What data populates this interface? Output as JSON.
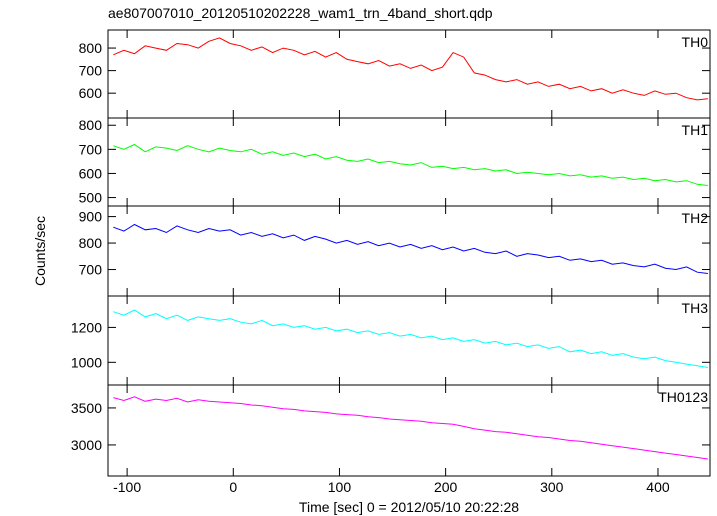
{
  "chart_data": [
    {
      "type": "line",
      "title": "ae807007010_20120510202228_wam1_trn_4band_short.qdp",
      "label": "TH0",
      "color": "#ff0000",
      "xlim": [
        -118,
        449
      ],
      "xticks": [
        -100,
        0,
        100,
        200,
        300,
        400
      ],
      "ylim": [
        490,
        880
      ],
      "yticks": [
        600,
        700,
        800
      ],
      "x": [
        -113,
        -103,
        -93,
        -83,
        -73,
        -63,
        -53,
        -43,
        -33,
        -23,
        -13,
        -3,
        7,
        17,
        27,
        37,
        47,
        57,
        67,
        77,
        87,
        97,
        107,
        117,
        127,
        137,
        147,
        157,
        167,
        177,
        187,
        197,
        207,
        217,
        227,
        237,
        247,
        257,
        267,
        277,
        287,
        297,
        307,
        317,
        327,
        337,
        347,
        357,
        367,
        377,
        387,
        397,
        407,
        417,
        427,
        437,
        447
      ],
      "values": [
        770,
        790,
        775,
        810,
        800,
        790,
        820,
        815,
        800,
        830,
        845,
        820,
        810,
        790,
        805,
        780,
        800,
        790,
        770,
        785,
        760,
        780,
        750,
        740,
        730,
        745,
        720,
        730,
        710,
        725,
        700,
        715,
        780,
        760,
        690,
        680,
        660,
        650,
        660,
        640,
        650,
        630,
        640,
        620,
        630,
        610,
        620,
        600,
        615,
        600,
        590,
        610,
        595,
        600,
        580,
        570,
        575
      ]
    },
    {
      "type": "line",
      "label": "TH1",
      "color": "#00ff00",
      "xlim": [
        -118,
        449
      ],
      "xticks": [
        -100,
        0,
        100,
        200,
        300,
        400
      ],
      "ylim": [
        465,
        830
      ],
      "yticks": [
        500,
        600,
        700,
        800
      ],
      "x": [
        -113,
        -103,
        -93,
        -83,
        -73,
        -63,
        -53,
        -43,
        -33,
        -23,
        -13,
        -3,
        7,
        17,
        27,
        37,
        47,
        57,
        67,
        77,
        87,
        97,
        107,
        117,
        127,
        137,
        147,
        157,
        167,
        177,
        187,
        197,
        207,
        217,
        227,
        237,
        247,
        257,
        267,
        277,
        287,
        297,
        307,
        317,
        327,
        337,
        347,
        357,
        367,
        377,
        387,
        397,
        407,
        417,
        427,
        437,
        447
      ],
      "values": [
        715,
        700,
        720,
        690,
        710,
        705,
        695,
        715,
        700,
        690,
        705,
        695,
        690,
        700,
        680,
        690,
        675,
        685,
        670,
        680,
        660,
        670,
        655,
        650,
        660,
        645,
        650,
        640,
        635,
        645,
        625,
        630,
        620,
        625,
        615,
        620,
        610,
        615,
        600,
        605,
        600,
        595,
        600,
        590,
        595,
        585,
        590,
        580,
        585,
        575,
        580,
        570,
        575,
        565,
        570,
        555,
        550
      ]
    },
    {
      "type": "line",
      "label": "TH2",
      "ylabel": "Counts/sec",
      "color": "#0000ff",
      "xlim": [
        -118,
        449
      ],
      "xticks": [
        -100,
        0,
        100,
        200,
        300,
        400
      ],
      "ylim": [
        600,
        940
      ],
      "yticks": [
        700,
        800,
        900
      ],
      "x": [
        -113,
        -103,
        -93,
        -83,
        -73,
        -63,
        -53,
        -43,
        -33,
        -23,
        -13,
        -3,
        7,
        17,
        27,
        37,
        47,
        57,
        67,
        77,
        87,
        97,
        107,
        117,
        127,
        137,
        147,
        157,
        167,
        177,
        187,
        197,
        207,
        217,
        227,
        237,
        247,
        257,
        267,
        277,
        287,
        297,
        307,
        317,
        327,
        337,
        347,
        357,
        367,
        377,
        387,
        397,
        407,
        417,
        427,
        437,
        447
      ],
      "values": [
        860,
        845,
        870,
        850,
        855,
        840,
        865,
        850,
        840,
        855,
        845,
        850,
        830,
        840,
        825,
        835,
        820,
        830,
        810,
        825,
        815,
        800,
        810,
        795,
        805,
        790,
        800,
        785,
        795,
        780,
        790,
        775,
        785,
        770,
        780,
        765,
        760,
        770,
        750,
        760,
        755,
        745,
        750,
        735,
        740,
        730,
        735,
        720,
        725,
        715,
        710,
        720,
        705,
        700,
        710,
        690,
        685
      ]
    },
    {
      "type": "line",
      "label": "TH3",
      "color": "#00ffff",
      "xlim": [
        -118,
        449
      ],
      "xticks": [
        -100,
        0,
        100,
        200,
        300,
        400
      ],
      "ylim": [
        870,
        1380
      ],
      "yticks": [
        1000,
        1200
      ],
      "x": [
        -113,
        -103,
        -93,
        -83,
        -73,
        -63,
        -53,
        -43,
        -33,
        -23,
        -13,
        -3,
        7,
        17,
        27,
        37,
        47,
        57,
        67,
        77,
        87,
        97,
        107,
        117,
        127,
        137,
        147,
        157,
        167,
        177,
        187,
        197,
        207,
        217,
        227,
        237,
        247,
        257,
        267,
        277,
        287,
        297,
        307,
        317,
        327,
        337,
        347,
        357,
        367,
        377,
        387,
        397,
        407,
        417,
        427,
        437,
        447
      ],
      "values": [
        1290,
        1270,
        1300,
        1260,
        1280,
        1250,
        1270,
        1240,
        1260,
        1250,
        1240,
        1250,
        1230,
        1220,
        1240,
        1210,
        1220,
        1200,
        1210,
        1190,
        1200,
        1180,
        1190,
        1170,
        1180,
        1160,
        1170,
        1150,
        1160,
        1140,
        1150,
        1130,
        1140,
        1120,
        1130,
        1110,
        1120,
        1100,
        1110,
        1090,
        1100,
        1080,
        1090,
        1060,
        1070,
        1050,
        1060,
        1040,
        1050,
        1030,
        1020,
        1030,
        1010,
        1000,
        990,
        980,
        970
      ]
    },
    {
      "type": "line",
      "label": "TH0123",
      "xlabel": "Time [sec] 0 = 2012/05/10 20:22:28",
      "color": "#ff00ff",
      "xlim": [
        -118,
        449
      ],
      "xticks": [
        -100,
        0,
        100,
        200,
        300,
        400
      ],
      "xtick_labels": true,
      "ylim": [
        2580,
        3810
      ],
      "yticks": [
        3000,
        3500
      ],
      "x": [
        -113,
        -103,
        -93,
        -83,
        -73,
        -63,
        -53,
        -43,
        -33,
        -23,
        -13,
        -3,
        7,
        17,
        27,
        37,
        47,
        57,
        67,
        77,
        87,
        97,
        107,
        117,
        127,
        137,
        147,
        157,
        167,
        177,
        187,
        197,
        207,
        217,
        227,
        237,
        247,
        257,
        267,
        277,
        287,
        297,
        307,
        317,
        327,
        337,
        347,
        357,
        367,
        377,
        387,
        397,
        407,
        417,
        427,
        437,
        447
      ],
      "values": [
        3640,
        3600,
        3650,
        3590,
        3620,
        3600,
        3630,
        3580,
        3610,
        3590,
        3580,
        3570,
        3560,
        3540,
        3530,
        3510,
        3490,
        3480,
        3460,
        3450,
        3440,
        3420,
        3410,
        3400,
        3380,
        3370,
        3350,
        3340,
        3330,
        3320,
        3300,
        3290,
        3280,
        3250,
        3220,
        3200,
        3180,
        3170,
        3150,
        3130,
        3110,
        3100,
        3080,
        3060,
        3050,
        3030,
        3010,
        2990,
        2970,
        2950,
        2930,
        2910,
        2890,
        2870,
        2850,
        2830,
        2810
      ]
    }
  ]
}
